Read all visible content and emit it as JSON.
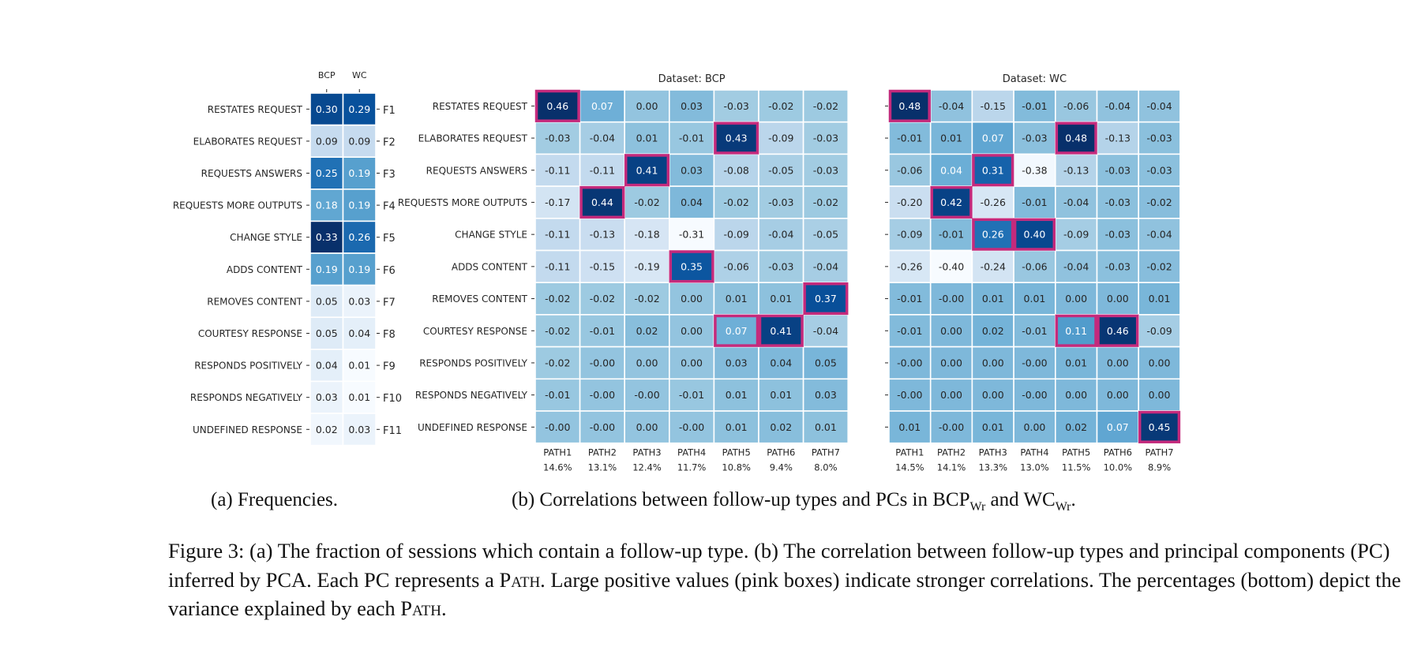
{
  "chart_data": [
    {
      "type": "heatmap",
      "title": "",
      "columns": [
        "BCP",
        "WC"
      ],
      "rows": [
        "RESTATES REQUEST",
        "ELABORATES REQUEST",
        "REQUESTS ANSWERS",
        "REQUESTS MORE OUTPUTS",
        "CHANGE STYLE",
        "ADDS CONTENT",
        "REMOVES CONTENT",
        "COURTESY RESPONSE",
        "RESPONDS POSITIVELY",
        "RESPONDS NEGATIVELY",
        "UNDEFINED RESPONSE"
      ],
      "right_labels": [
        "F1",
        "F2",
        "F3",
        "F4",
        "F5",
        "F6",
        "F7",
        "F8",
        "F9",
        "F10",
        "F11"
      ],
      "values": [
        [
          "0.30",
          "0.29"
        ],
        [
          "0.09",
          "0.09"
        ],
        [
          "0.25",
          "0.19"
        ],
        [
          "0.18",
          "0.19"
        ],
        [
          "0.33",
          "0.26"
        ],
        [
          "0.19",
          "0.19"
        ],
        [
          "0.05",
          "0.03"
        ],
        [
          "0.05",
          "0.04"
        ],
        [
          "0.04",
          "0.01"
        ],
        [
          "0.03",
          "0.01"
        ],
        [
          "0.02",
          "0.03"
        ]
      ],
      "colormap": "Blues",
      "vlim": [
        0.01,
        0.33
      ]
    },
    {
      "type": "heatmap",
      "title": "Dataset: BCP",
      "columns": [
        "PATH1",
        "PATH2",
        "PATH3",
        "PATH4",
        "PATH5",
        "PATH6",
        "PATH7"
      ],
      "column_variance": [
        "14.6%",
        "13.1%",
        "12.4%",
        "11.7%",
        "10.8%",
        "9.4%",
        "8.0%"
      ],
      "rows": [
        "RESTATES REQUEST",
        "ELABORATES REQUEST",
        "REQUESTS ANSWERS",
        "REQUESTS MORE OUTPUTS",
        "CHANGE STYLE",
        "ADDS CONTENT",
        "REMOVES CONTENT",
        "COURTESY RESPONSE",
        "RESPONDS POSITIVELY",
        "RESPONDS NEGATIVELY",
        "UNDEFINED RESPONSE"
      ],
      "values": [
        [
          "0.46",
          "0.07",
          "0.00",
          "0.03",
          "-0.03",
          "-0.02",
          "-0.02"
        ],
        [
          "-0.03",
          "-0.04",
          "0.01",
          "-0.01",
          "0.43",
          "-0.09",
          "-0.03"
        ],
        [
          "-0.11",
          "-0.11",
          "0.41",
          "0.03",
          "-0.08",
          "-0.05",
          "-0.03"
        ],
        [
          "-0.17",
          "0.44",
          "-0.02",
          "0.04",
          "-0.02",
          "-0.03",
          "-0.02"
        ],
        [
          "-0.11",
          "-0.13",
          "-0.18",
          "-0.31",
          "-0.09",
          "-0.04",
          "-0.05"
        ],
        [
          "-0.11",
          "-0.15",
          "-0.19",
          "0.35",
          "-0.06",
          "-0.03",
          "-0.04"
        ],
        [
          "-0.02",
          "-0.02",
          "-0.02",
          "0.00",
          "0.01",
          "0.01",
          "0.37"
        ],
        [
          "-0.02",
          "-0.01",
          "0.02",
          "0.00",
          "0.07",
          "0.41",
          "-0.04"
        ],
        [
          "-0.02",
          "-0.00",
          "0.00",
          "0.00",
          "0.03",
          "0.04",
          "0.05"
        ],
        [
          "-0.01",
          "-0.00",
          "-0.00",
          "-0.01",
          "0.01",
          "0.01",
          "0.03"
        ],
        [
          "-0.00",
          "-0.00",
          "0.00",
          "-0.00",
          "0.01",
          "0.02",
          "0.01"
        ]
      ],
      "highlighted_cells": [
        [
          0,
          0
        ],
        [
          1,
          4
        ],
        [
          2,
          2
        ],
        [
          3,
          1
        ],
        [
          5,
          3
        ],
        [
          6,
          6
        ],
        [
          7,
          4
        ],
        [
          7,
          5
        ]
      ],
      "colormap": "Blues",
      "vlim": [
        -0.31,
        0.46
      ]
    },
    {
      "type": "heatmap",
      "title": "Dataset: WC",
      "columns": [
        "PATH1",
        "PATH2",
        "PATH3",
        "PATH4",
        "PATH5",
        "PATH6",
        "PATH7"
      ],
      "column_variance": [
        "14.5%",
        "14.1%",
        "13.3%",
        "13.0%",
        "11.5%",
        "10.0%",
        "8.9%"
      ],
      "values": [
        [
          "0.48",
          "-0.04",
          "-0.15",
          "-0.01",
          "-0.06",
          "-0.04",
          "-0.04"
        ],
        [
          "-0.01",
          "0.01",
          "0.07",
          "-0.03",
          "0.48",
          "-0.13",
          "-0.03"
        ],
        [
          "-0.06",
          "0.04",
          "0.31",
          "-0.38",
          "-0.13",
          "-0.03",
          "-0.03"
        ],
        [
          "-0.20",
          "0.42",
          "-0.26",
          "-0.01",
          "-0.04",
          "-0.03",
          "-0.02"
        ],
        [
          "-0.09",
          "-0.01",
          "0.26",
          "0.40",
          "-0.09",
          "-0.03",
          "-0.04"
        ],
        [
          "-0.26",
          "-0.40",
          "-0.24",
          "-0.06",
          "-0.04",
          "-0.03",
          "-0.02"
        ],
        [
          "-0.01",
          "-0.00",
          "0.01",
          "0.01",
          "0.00",
          "0.00",
          "0.01"
        ],
        [
          "-0.01",
          "0.00",
          "0.02",
          "-0.01",
          "0.11",
          "0.46",
          "-0.09"
        ],
        [
          "-0.00",
          "0.00",
          "0.00",
          "-0.00",
          "0.01",
          "0.00",
          "0.00"
        ],
        [
          "-0.00",
          "0.00",
          "0.00",
          "-0.00",
          "0.00",
          "0.00",
          "0.00"
        ],
        [
          "0.01",
          "-0.00",
          "0.01",
          "0.00",
          "0.02",
          "0.07",
          "0.45"
        ]
      ],
      "highlighted_cells": [
        [
          0,
          0
        ],
        [
          1,
          4
        ],
        [
          2,
          2
        ],
        [
          3,
          1
        ],
        [
          4,
          2
        ],
        [
          4,
          3
        ],
        [
          7,
          4
        ],
        [
          7,
          5
        ],
        [
          10,
          6
        ]
      ],
      "colormap": "Blues",
      "vlim": [
        -0.4,
        0.48
      ]
    }
  ],
  "colors": {
    "highlight": "#c42a7c",
    "text_dark": "#262626"
  },
  "subcaptions": {
    "a": "(a) Frequencies.",
    "b_prefix": "(b) Correlations between follow-up types and PCs in BCP",
    "b_sub1": "Wr",
    "b_mid": " and WC",
    "b_sub2": "Wr",
    "b_end": "."
  },
  "caption": {
    "part1": "Figure 3: (a) The fraction of sessions which contain a follow-up type. (b) The correlation between follow-up types and principal components (PC) inferred by PCA. Each PC represents a ",
    "path1": "Path",
    "part2": ". Large positive values (pink boxes) indicate stronger correlations. The percentages (bottom) depict the variance explained by each ",
    "path2": "Path",
    "part3": "."
  }
}
